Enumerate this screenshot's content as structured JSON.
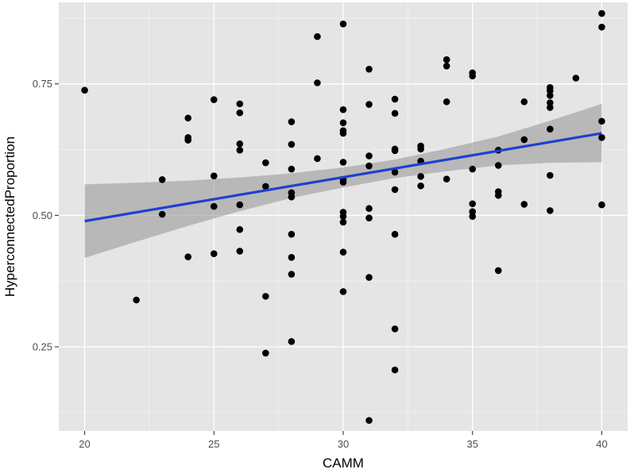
{
  "chart_data": {
    "type": "scatter",
    "xlabel": "CAMM",
    "ylabel": "HyperconnectedProportion",
    "xlim": [
      19.0,
      41.0
    ],
    "ylim": [
      0.09,
      0.905
    ],
    "x_ticks": [
      20,
      25,
      30,
      35,
      40
    ],
    "x_tick_labels": [
      "20",
      "25",
      "30",
      "35",
      "40"
    ],
    "y_ticks": [
      0.25,
      0.5,
      0.75
    ],
    "y_tick_labels": [
      "0.25",
      "0.50",
      "0.75"
    ],
    "grid": true,
    "legend": "none",
    "points": [
      [
        20,
        0.738
      ],
      [
        22,
        0.339
      ],
      [
        23,
        0.568
      ],
      [
        23,
        0.502
      ],
      [
        24,
        0.685
      ],
      [
        24,
        0.648
      ],
      [
        24,
        0.643
      ],
      [
        24,
        0.421
      ],
      [
        25,
        0.72
      ],
      [
        25,
        0.575
      ],
      [
        25,
        0.517
      ],
      [
        25,
        0.427
      ],
      [
        26,
        0.712
      ],
      [
        26,
        0.695
      ],
      [
        26,
        0.636
      ],
      [
        26,
        0.624
      ],
      [
        26,
        0.52
      ],
      [
        26,
        0.473
      ],
      [
        26,
        0.432
      ],
      [
        27,
        0.6
      ],
      [
        27,
        0.555
      ],
      [
        27,
        0.346
      ],
      [
        27,
        0.238
      ],
      [
        28,
        0.678
      ],
      [
        28,
        0.635
      ],
      [
        28,
        0.588
      ],
      [
        28,
        0.543
      ],
      [
        28,
        0.535
      ],
      [
        28,
        0.464
      ],
      [
        28,
        0.42
      ],
      [
        28,
        0.388
      ],
      [
        28,
        0.26
      ],
      [
        29,
        0.84
      ],
      [
        29,
        0.752
      ],
      [
        29,
        0.608
      ],
      [
        30,
        0.864
      ],
      [
        30,
        0.701
      ],
      [
        30,
        0.676
      ],
      [
        30,
        0.661
      ],
      [
        30,
        0.656
      ],
      [
        30,
        0.601
      ],
      [
        30,
        0.568
      ],
      [
        30,
        0.563
      ],
      [
        30,
        0.506
      ],
      [
        30,
        0.498
      ],
      [
        30,
        0.487
      ],
      [
        30,
        0.43
      ],
      [
        30,
        0.355
      ],
      [
        31,
        0.778
      ],
      [
        31,
        0.711
      ],
      [
        31,
        0.613
      ],
      [
        31,
        0.594
      ],
      [
        31,
        0.513
      ],
      [
        31,
        0.495
      ],
      [
        31,
        0.382
      ],
      [
        31,
        0.11
      ],
      [
        32,
        0.721
      ],
      [
        32,
        0.694
      ],
      [
        32,
        0.626
      ],
      [
        32,
        0.623
      ],
      [
        32,
        0.582
      ],
      [
        32,
        0.549
      ],
      [
        32,
        0.464
      ],
      [
        32,
        0.284
      ],
      [
        32,
        0.206
      ],
      [
        33,
        0.632
      ],
      [
        33,
        0.626
      ],
      [
        33,
        0.603
      ],
      [
        33,
        0.574
      ],
      [
        33,
        0.556
      ],
      [
        34,
        0.796
      ],
      [
        34,
        0.784
      ],
      [
        34,
        0.716
      ],
      [
        34,
        0.569
      ],
      [
        35,
        0.771
      ],
      [
        35,
        0.765
      ],
      [
        35,
        0.588
      ],
      [
        35,
        0.522
      ],
      [
        35,
        0.507
      ],
      [
        35,
        0.498
      ],
      [
        36,
        0.624
      ],
      [
        36,
        0.595
      ],
      [
        36,
        0.545
      ],
      [
        36,
        0.538
      ],
      [
        36,
        0.395
      ],
      [
        37,
        0.716
      ],
      [
        37,
        0.644
      ],
      [
        37,
        0.521
      ],
      [
        38,
        0.743
      ],
      [
        38,
        0.737
      ],
      [
        38,
        0.728
      ],
      [
        38,
        0.714
      ],
      [
        38,
        0.705
      ],
      [
        38,
        0.664
      ],
      [
        38,
        0.576
      ],
      [
        38,
        0.509
      ],
      [
        39,
        0.761
      ],
      [
        40,
        0.884
      ],
      [
        40,
        0.858
      ],
      [
        40,
        0.679
      ],
      [
        40,
        0.648
      ],
      [
        40,
        0.52
      ]
    ],
    "fit_line": {
      "method": "linear",
      "x": [
        20,
        40
      ],
      "y": [
        0.489,
        0.656
      ],
      "color": "#1f3fd1"
    },
    "confidence_band": {
      "x": [
        20,
        22,
        24,
        26,
        28,
        30,
        32,
        34,
        36,
        38,
        40
      ],
      "lower": [
        0.419,
        0.45,
        0.48,
        0.508,
        0.533,
        0.553,
        0.571,
        0.584,
        0.595,
        0.6,
        0.601
      ],
      "upper": [
        0.559,
        0.562,
        0.566,
        0.572,
        0.58,
        0.591,
        0.606,
        0.627,
        0.65,
        0.68,
        0.712
      ],
      "color": "#999999"
    },
    "colors": {
      "panel_background": "#e5e5e5",
      "grid_major": "#ffffff",
      "point": "#000000"
    }
  }
}
